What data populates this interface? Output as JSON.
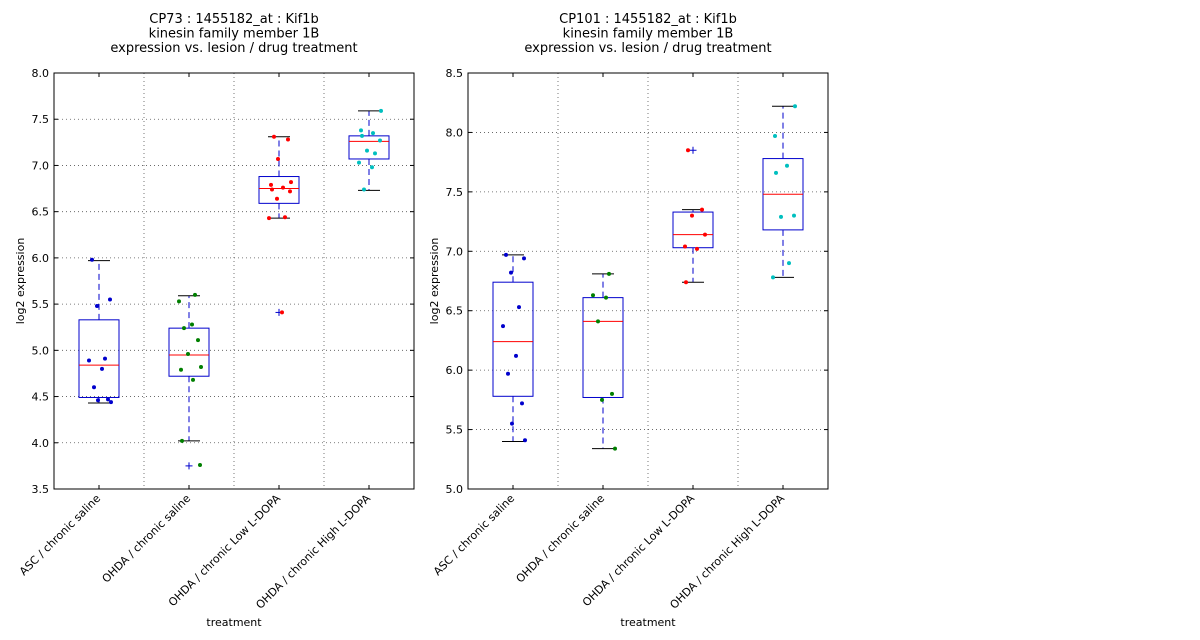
{
  "chart_data": [
    {
      "type": "box",
      "title": [
        "CP73 : 1455182_at : Kif1b",
        "kinesin family member 1B",
        "expression vs. lesion / drug treatment"
      ],
      "xlabel": "treatment",
      "ylabel": "log2 expression",
      "ylim": [
        3.5,
        8.0
      ],
      "yticks": [
        "3.5",
        "4.0",
        "4.5",
        "5.0",
        "5.5",
        "6.0",
        "6.5",
        "7.0",
        "7.5",
        "8.0"
      ],
      "grid": true,
      "categories": [
        "ASC / chronic saline",
        "OHDA / chronic saline",
        "OHDA / chronic Low L-DOPA",
        "OHDA / chronic High L-DOPA"
      ],
      "colors": [
        "#0000cc",
        "#007f00",
        "#ff0000",
        "#00bfbf"
      ],
      "boxes": [
        {
          "q1": 4.49,
          "median": 4.84,
          "q3": 5.33,
          "whislo": 4.43,
          "whishi": 5.97,
          "fliers": []
        },
        {
          "q1": 4.72,
          "median": 4.95,
          "q3": 5.24,
          "whislo": 4.02,
          "whishi": 5.59,
          "fliers": [
            3.75
          ]
        },
        {
          "q1": 6.59,
          "median": 6.75,
          "q3": 6.88,
          "whislo": 6.43,
          "whishi": 7.31,
          "fliers": [
            5.41
          ]
        },
        {
          "q1": 7.07,
          "median": 7.26,
          "q3": 7.32,
          "whislo": 6.73,
          "whishi": 7.59,
          "fliers": []
        }
      ],
      "points": [
        [
          5.98,
          5.55,
          5.48,
          4.91,
          4.89,
          4.8,
          4.6,
          4.47,
          4.46,
          4.44
        ],
        [
          5.6,
          5.53,
          5.28,
          5.24,
          5.11,
          4.96,
          4.82,
          4.79,
          4.68,
          4.02,
          3.76
        ],
        [
          7.31,
          7.28,
          7.07,
          6.82,
          6.79,
          6.76,
          6.74,
          6.72,
          6.64,
          6.44,
          6.43,
          5.41
        ],
        [
          7.59,
          7.38,
          7.35,
          7.32,
          7.27,
          7.16,
          7.13,
          7.03,
          6.98,
          6.74
        ]
      ]
    },
    {
      "type": "box",
      "title": [
        "CP101 : 1455182_at : Kif1b",
        "kinesin family member 1B",
        "expression vs. lesion / drug treatment"
      ],
      "xlabel": "treatment",
      "ylabel": "log2 expression",
      "ylim": [
        5.0,
        8.5
      ],
      "yticks": [
        "5.0",
        "5.5",
        "6.0",
        "6.5",
        "7.0",
        "7.5",
        "8.0",
        "8.5"
      ],
      "grid": true,
      "categories": [
        "ASC / chronic saline",
        "OHDA / chronic saline",
        "OHDA / chronic Low L-DOPA",
        "OHDA / chronic High L-DOPA"
      ],
      "colors": [
        "#0000cc",
        "#007f00",
        "#ff0000",
        "#00bfbf"
      ],
      "boxes": [
        {
          "q1": 5.78,
          "median": 6.24,
          "q3": 6.74,
          "whislo": 5.4,
          "whishi": 6.97,
          "fliers": []
        },
        {
          "q1": 5.77,
          "median": 6.41,
          "q3": 6.61,
          "whislo": 5.34,
          "whishi": 6.81,
          "fliers": []
        },
        {
          "q1": 7.03,
          "median": 7.14,
          "q3": 7.33,
          "whislo": 6.74,
          "whishi": 7.35,
          "fliers": [
            7.85
          ]
        },
        {
          "q1": 7.18,
          "median": 7.48,
          "q3": 7.78,
          "whislo": 6.78,
          "whishi": 8.22,
          "fliers": []
        }
      ],
      "points": [
        [
          6.97,
          6.94,
          6.82,
          6.53,
          6.37,
          6.12,
          5.97,
          5.72,
          5.55,
          5.41
        ],
        [
          6.81,
          6.63,
          6.61,
          6.41,
          5.8,
          5.75,
          5.34
        ],
        [
          7.85,
          7.35,
          7.3,
          7.14,
          7.04,
          7.02,
          6.74
        ],
        [
          8.22,
          7.97,
          7.72,
          7.66,
          7.3,
          7.29,
          6.9,
          6.78
        ]
      ]
    }
  ]
}
